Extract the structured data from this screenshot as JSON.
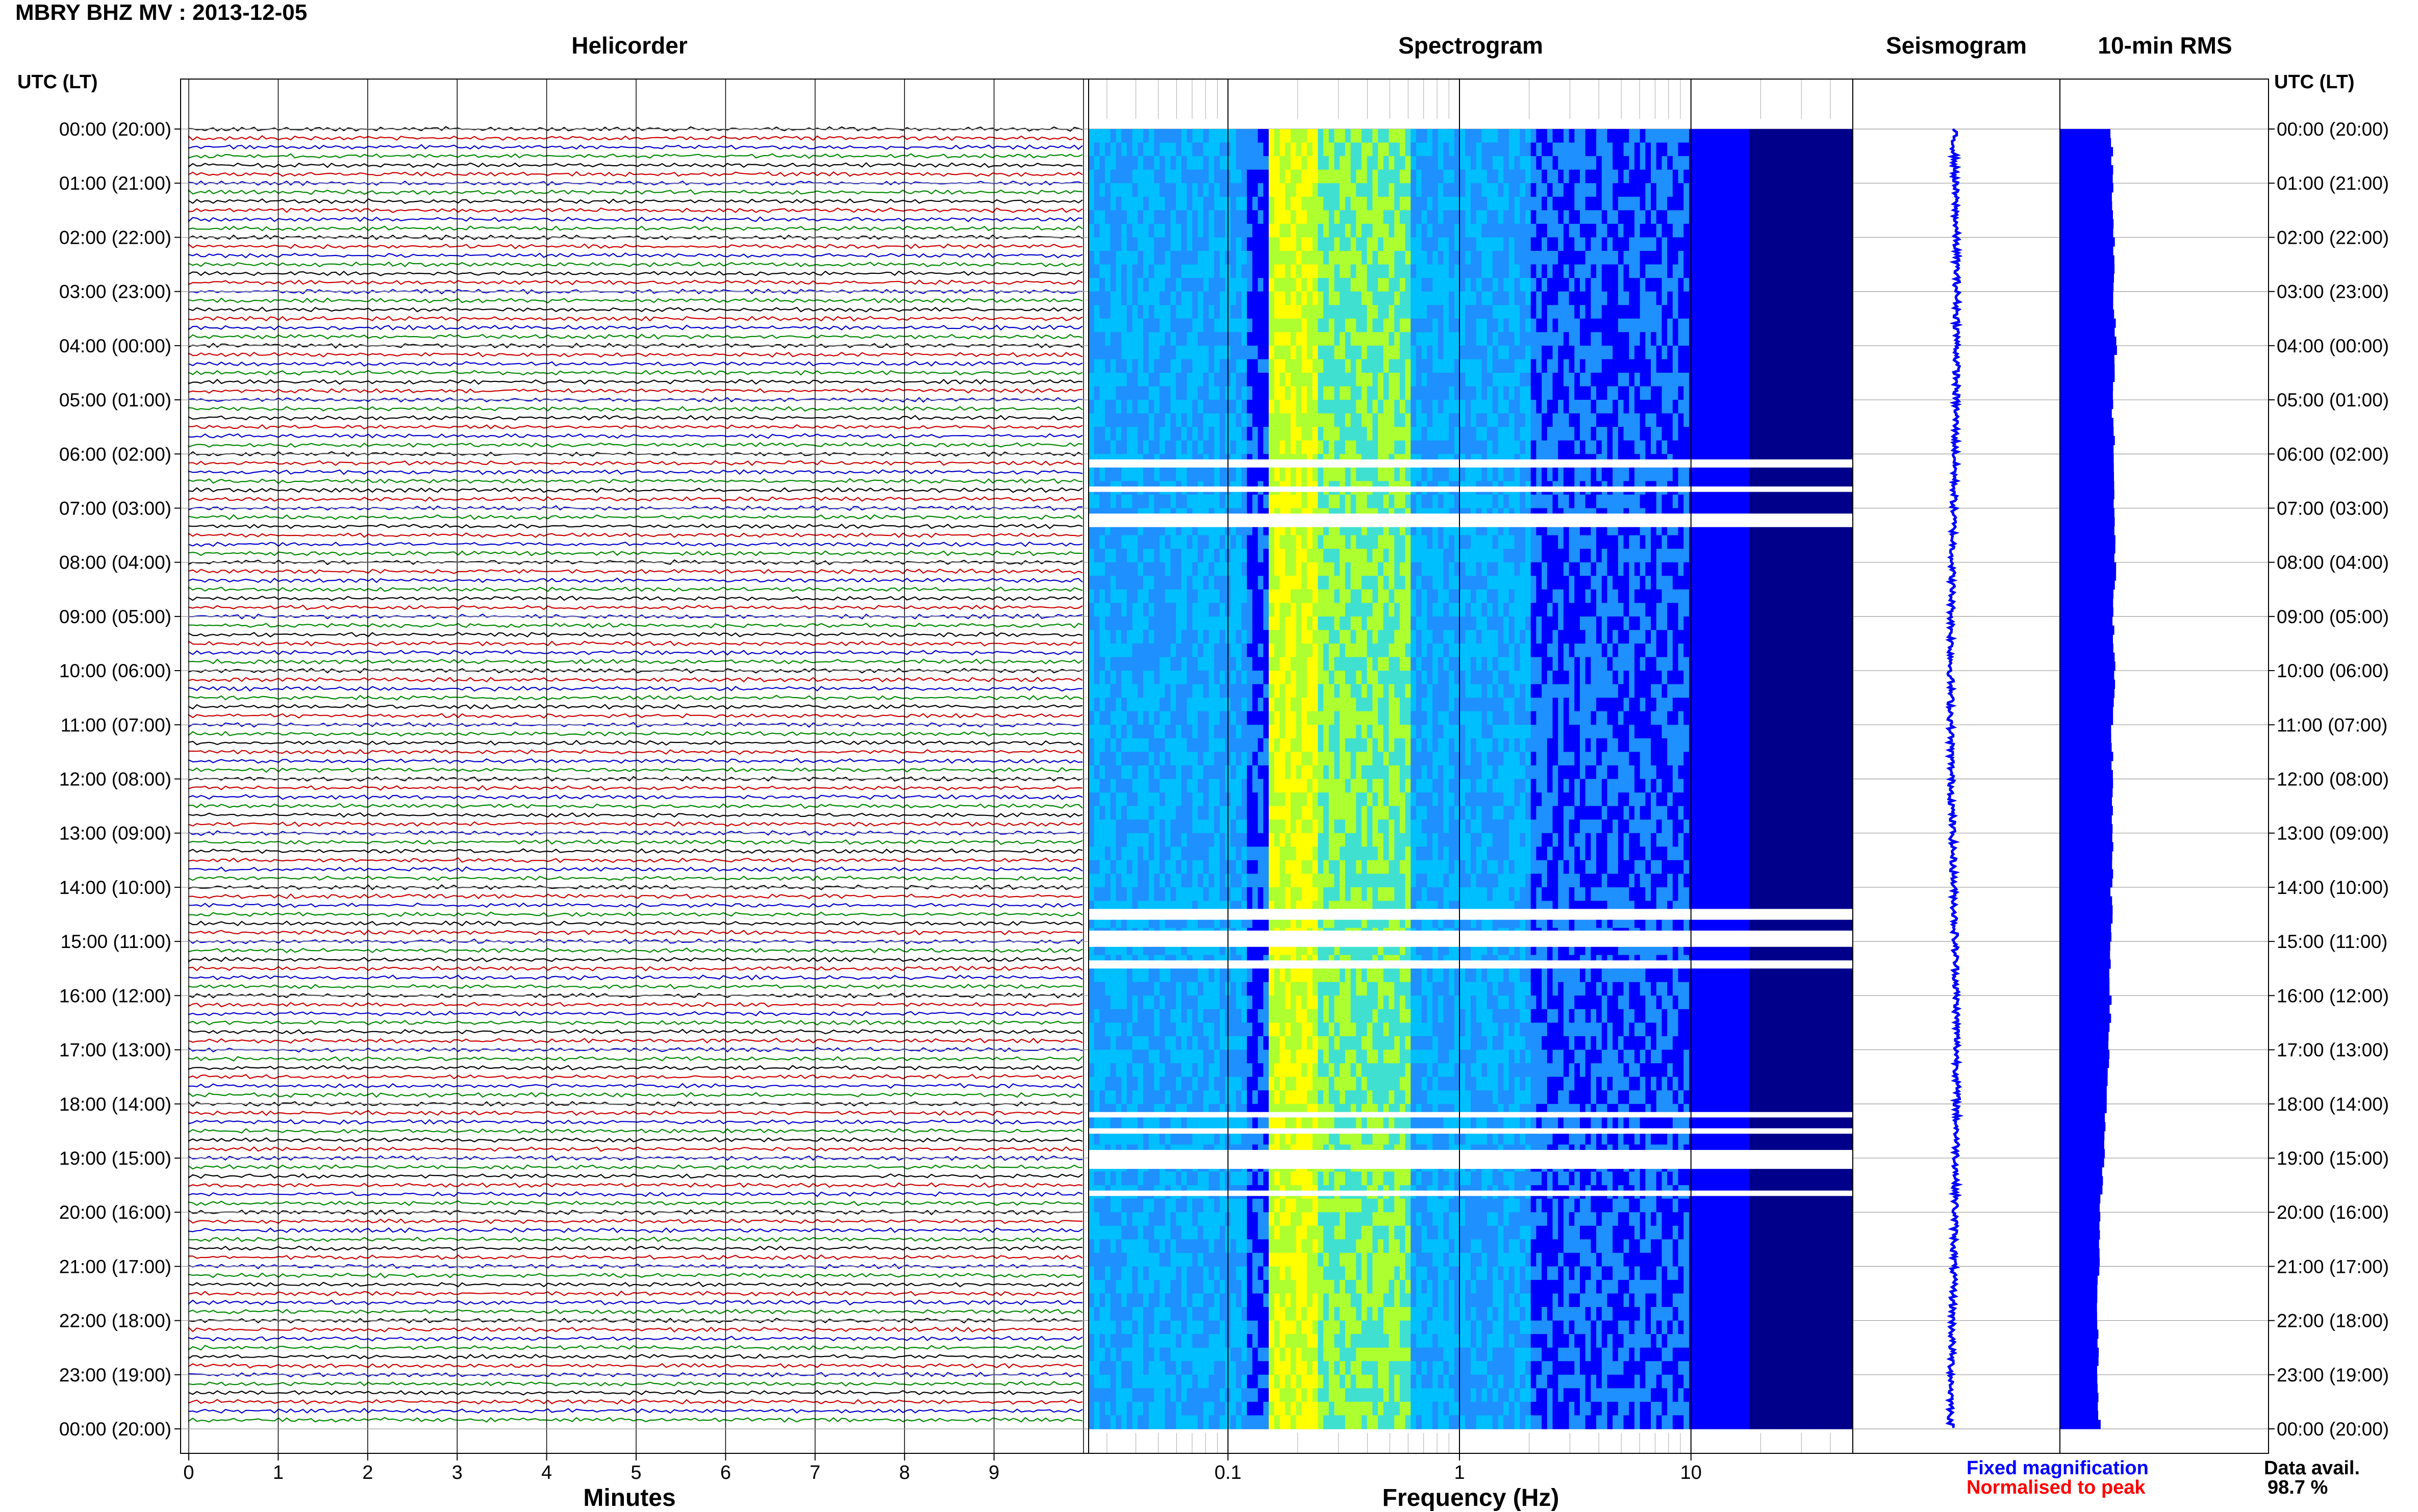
{
  "header": {
    "title": "MBRY BHZ MV : 2013-12-05"
  },
  "panels": {
    "helicorder": "Helicorder",
    "spectrogram": "Spectrogram",
    "seismogram": "Seismogram",
    "rms": "10-min RMS"
  },
  "axes": {
    "time_label": "UTC (LT)",
    "minutes_label": "Minutes",
    "frequency_label": "Frequency (Hz)"
  },
  "legend": {
    "fixed": "Fixed magnification",
    "normalised": "Normalised to peak",
    "fixed_color": "#0000ff",
    "normalised_color": "#ff0000"
  },
  "availability": {
    "label": "Data avail.",
    "value": "98.7 %"
  },
  "chart_data": {
    "type": "heatmap",
    "time_ticks": [
      "00:00 (20:00)",
      "01:00 (21:00)",
      "02:00 (22:00)",
      "03:00 (23:00)",
      "04:00 (00:00)",
      "05:00 (01:00)",
      "06:00 (02:00)",
      "07:00 (03:00)",
      "08:00 (04:00)",
      "09:00 (05:00)",
      "10:00 (06:00)",
      "11:00 (07:00)",
      "12:00 (08:00)",
      "13:00 (09:00)",
      "14:00 (10:00)",
      "15:00 (11:00)",
      "16:00 (12:00)",
      "17:00 (13:00)",
      "18:00 (14:00)",
      "19:00 (15:00)",
      "20:00 (16:00)",
      "21:00 (17:00)",
      "22:00 (18:00)",
      "23:00 (19:00)",
      "00:00 (20:00)"
    ],
    "minute_ticks": [
      "0",
      "1",
      "2",
      "3",
      "4",
      "5",
      "6",
      "7",
      "8",
      "9"
    ],
    "minute_range": [
      0,
      10
    ],
    "frequency_ticks": [
      "0.1",
      "1",
      "10"
    ],
    "frequency_range": [
      0.025,
      50
    ],
    "frequency_scale": "log",
    "helicorder_colors": [
      "#000000",
      "#cc0000",
      "#0000cc",
      "#008800"
    ],
    "spectrogram_colormap": [
      "#00008b",
      "#0000ff",
      "#1e90ff",
      "#00bfff",
      "#40e0d0",
      "#adff2f",
      "#ffff00"
    ],
    "data_gaps_utc_hours": [
      [
        6.1,
        6.25
      ],
      [
        6.6,
        6.7
      ],
      [
        7.1,
        7.35
      ],
      [
        14.4,
        14.6
      ],
      [
        14.8,
        15.1
      ],
      [
        15.35,
        15.5
      ],
      [
        18.15,
        18.25
      ],
      [
        18.45,
        18.55
      ],
      [
        18.85,
        19.2
      ],
      [
        19.6,
        19.7
      ]
    ],
    "rms_profile": [
      0.78,
      0.8,
      0.82,
      0.8,
      0.85,
      0.79,
      0.83,
      0.81,
      0.84,
      0.8,
      0.82,
      0.78,
      0.8,
      0.79,
      0.78,
      0.77,
      0.76,
      0.74,
      0.7,
      0.65,
      0.6,
      0.58,
      0.56,
      0.58,
      0.6
    ]
  }
}
